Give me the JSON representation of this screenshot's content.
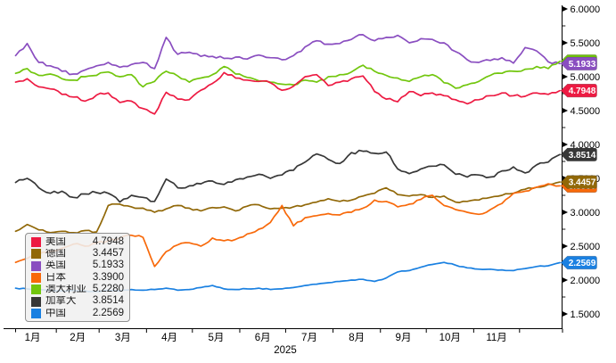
{
  "chart_data": {
    "type": "line",
    "year_label": "2025",
    "background": "#ffffff",
    "axis_color": "#000000",
    "legend_border_color": "#909090",
    "x_axis": {
      "position": "bottom",
      "month_labels": [
        "1月",
        "2月",
        "3月",
        "4月",
        "5月",
        "6月",
        "7月",
        "8月",
        "9月",
        "10月",
        "11月"
      ]
    },
    "y_axis": {
      "position": "right",
      "min": 1.5,
      "max": 6.0,
      "major_step": 0.5,
      "minor_step": 0.25,
      "tick_labels": [
        "6.0000",
        "5.5000",
        "5.0000",
        "4.5000",
        "4.0000",
        "3.5000",
        "3.0000",
        "2.5000",
        "2.0000",
        "1.5000"
      ]
    },
    "legend_position": "bottom-left",
    "grid": false,
    "series": [
      {
        "key": "usa",
        "name": "美国",
        "color": "#ed1a42",
        "current": "4.7948",
        "current_value": 4.7948,
        "jitter": 0.022,
        "values": [
          4.92,
          4.97,
          4.85,
          4.82,
          4.74,
          4.7,
          4.64,
          4.73,
          4.76,
          4.62,
          4.64,
          4.53,
          4.45,
          4.77,
          4.67,
          4.66,
          4.8,
          4.9,
          5.06,
          4.98,
          4.95,
          4.93,
          4.91,
          4.8,
          4.86,
          5.0,
          5.03,
          4.87,
          4.92,
          4.97,
          5.01,
          4.78,
          4.67,
          4.63,
          4.78,
          4.72,
          4.76,
          4.72,
          4.66,
          4.6,
          4.66,
          4.72,
          4.76,
          4.72,
          4.71,
          4.76,
          4.74,
          4.7948
        ]
      },
      {
        "key": "germany",
        "name": "德国",
        "color": "#916808",
        "current": "3.4457",
        "current_value": 3.4457,
        "jitter": 0.014,
        "values": [
          2.72,
          2.82,
          2.74,
          2.7,
          2.72,
          2.7,
          2.73,
          2.71,
          3.1,
          3.12,
          3.08,
          3.06,
          3.0,
          3.05,
          3.1,
          3.06,
          3.02,
          3.07,
          3.08,
          3.02,
          3.09,
          3.11,
          3.05,
          3.06,
          3.08,
          3.11,
          3.15,
          3.2,
          3.16,
          3.18,
          3.24,
          3.28,
          3.36,
          3.26,
          3.24,
          3.26,
          3.22,
          3.24,
          3.15,
          3.16,
          3.18,
          3.22,
          3.25,
          3.28,
          3.34,
          3.37,
          3.41,
          3.4457
        ]
      },
      {
        "key": "uk",
        "name": "英国",
        "color": "#8a4ec0",
        "current": "5.1933",
        "current_value": 5.1933,
        "jitter": 0.022,
        "values": [
          5.31,
          5.49,
          5.21,
          5.16,
          5.08,
          5.04,
          5.1,
          5.16,
          5.21,
          5.14,
          5.18,
          5.21,
          5.12,
          5.58,
          5.33,
          5.36,
          5.3,
          5.3,
          5.27,
          5.29,
          5.26,
          5.32,
          5.28,
          5.25,
          5.31,
          5.44,
          5.53,
          5.48,
          5.49,
          5.55,
          5.62,
          5.53,
          5.58,
          5.61,
          5.5,
          5.56,
          5.55,
          5.5,
          5.37,
          5.25,
          5.21,
          5.24,
          5.28,
          5.2,
          5.43,
          5.38,
          5.22,
          5.1933
        ]
      },
      {
        "key": "japan",
        "name": "日本",
        "color": "#f8690a",
        "current": "3.3900",
        "current_value": 3.39,
        "jitter": 0.018,
        "values": [
          2.26,
          2.32,
          2.38,
          2.42,
          2.47,
          2.53,
          2.5,
          2.55,
          2.58,
          2.62,
          2.66,
          2.63,
          2.2,
          2.42,
          2.52,
          2.55,
          2.5,
          2.62,
          2.58,
          2.6,
          2.68,
          2.75,
          2.85,
          3.1,
          2.8,
          2.92,
          2.95,
          2.98,
          2.96,
          3.0,
          3.06,
          3.18,
          3.16,
          3.08,
          3.12,
          3.19,
          3.25,
          3.1,
          3.04,
          3.0,
          2.97,
          3.04,
          3.13,
          3.28,
          3.31,
          3.37,
          3.42,
          3.39
        ]
      },
      {
        "key": "australia",
        "name": "澳大利亚",
        "color": "#72c60e",
        "current": "5.2280",
        "current_value": 5.228,
        "jitter": 0.02,
        "values": [
          5.05,
          5.12,
          5.02,
          5.04,
          4.97,
          4.95,
          5.0,
          5.02,
          5.07,
          5.0,
          5.03,
          4.85,
          4.93,
          5.08,
          5.01,
          4.92,
          4.98,
          5.03,
          5.15,
          5.04,
          4.99,
          4.94,
          4.92,
          4.89,
          4.88,
          4.95,
          4.92,
          5.0,
          5.03,
          5.07,
          5.17,
          5.08,
          5.02,
          4.98,
          4.93,
          5.0,
          5.03,
          4.91,
          4.83,
          4.88,
          4.93,
          5.02,
          5.05,
          5.08,
          5.11,
          5.15,
          5.12,
          5.228
        ]
      },
      {
        "key": "canada",
        "name": "加拿大",
        "color": "#373737",
        "current": "3.8514",
        "current_value": 3.8514,
        "jitter": 0.024,
        "values": [
          3.44,
          3.5,
          3.36,
          3.28,
          3.31,
          3.22,
          3.27,
          3.29,
          3.28,
          3.15,
          3.25,
          3.22,
          3.16,
          3.49,
          3.36,
          3.39,
          3.42,
          3.46,
          3.41,
          3.48,
          3.52,
          3.56,
          3.5,
          3.55,
          3.62,
          3.74,
          3.86,
          3.78,
          3.72,
          3.88,
          3.9,
          3.87,
          3.89,
          3.64,
          3.57,
          3.64,
          3.68,
          3.7,
          3.56,
          3.52,
          3.55,
          3.52,
          3.61,
          3.67,
          3.58,
          3.7,
          3.74,
          3.8514
        ]
      },
      {
        "key": "china",
        "name": "中国",
        "color": "#1a80e1",
        "current": "2.2569",
        "current_value": 2.2569,
        "jitter": 0.007,
        "values": [
          1.88,
          1.87,
          1.86,
          1.85,
          1.84,
          1.85,
          1.84,
          1.83,
          1.85,
          1.84,
          1.86,
          1.85,
          1.86,
          1.88,
          1.85,
          1.86,
          1.89,
          1.92,
          1.87,
          1.86,
          1.87,
          1.88,
          1.86,
          1.87,
          1.89,
          1.92,
          1.94,
          1.96,
          1.98,
          2.0,
          2.01,
          1.98,
          2.03,
          2.12,
          2.14,
          2.19,
          2.23,
          2.26,
          2.22,
          2.18,
          2.16,
          2.16,
          2.15,
          2.14,
          2.17,
          2.2,
          2.21,
          2.2569
        ]
      }
    ],
    "draw_order": [
      "uk",
      "canada",
      "china",
      "germany",
      "australia",
      "usa",
      "japan"
    ],
    "badge_order": [
      "australia",
      "uk",
      "usa",
      "canada",
      "japan",
      "germany",
      "china"
    ]
  }
}
